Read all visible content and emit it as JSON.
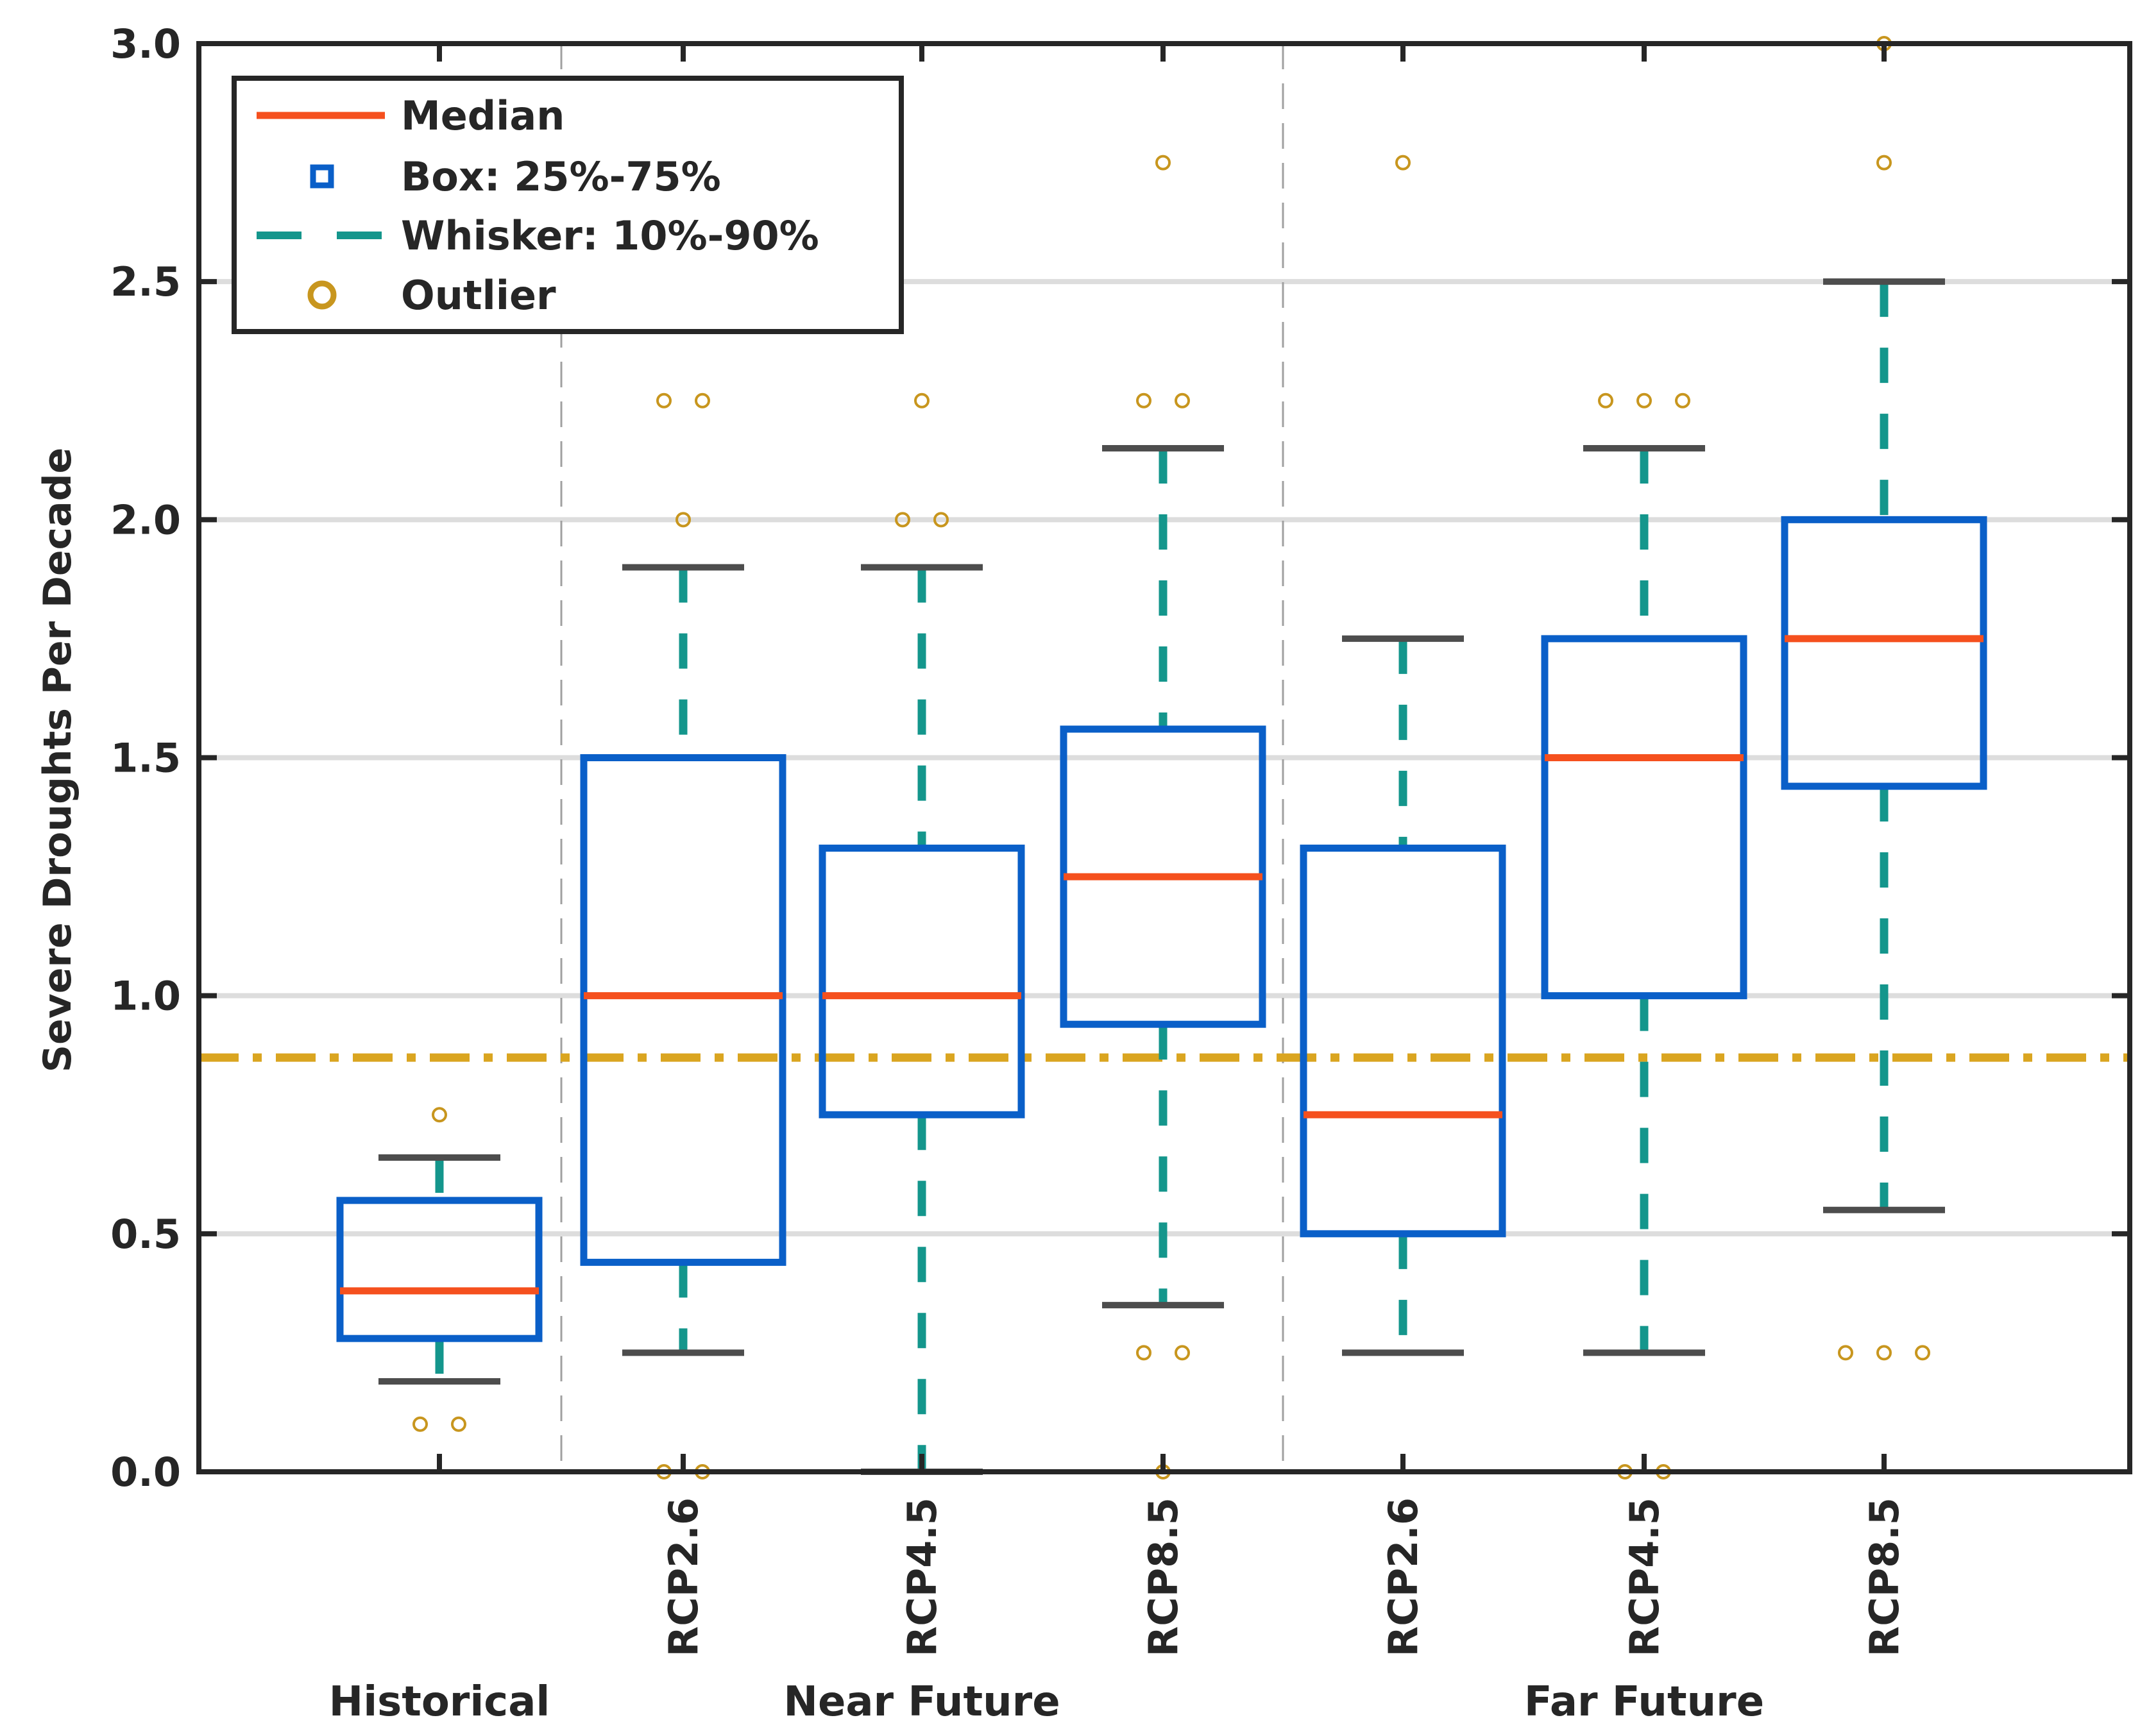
{
  "chart_data": {
    "type": "box",
    "title": "",
    "xlabel": "",
    "ylabel": "Severe Droughts Per Decade",
    "ylim": [
      0,
      3
    ],
    "yticks": [
      0,
      0.5,
      1,
      1.5,
      2,
      2.5,
      3
    ],
    "ytick_labels": [
      "0.0",
      "0.5",
      "1.0",
      "1.5",
      "2.0",
      "2.5",
      "3.0"
    ],
    "grid": "horizontal",
    "reference_line": {
      "value": 0.87,
      "style": "dash-dot",
      "color": "#DAA520"
    },
    "group_labels": [
      "Historical",
      "Near Future",
      "Far Future"
    ],
    "legend": {
      "position": "top-left",
      "entries": [
        {
          "label": "Median",
          "kind": "line",
          "color": "#F5501E"
        },
        {
          "label": "Box:  25%-75%",
          "kind": "square",
          "color": "#0A5FC8"
        },
        {
          "label": "Whisker:  10%-90%",
          "kind": "dash",
          "color": "#14968C"
        },
        {
          "label": "Outlier",
          "kind": "circle",
          "color": "#C8961E"
        }
      ]
    },
    "colors": {
      "median": "#F5501E",
      "box": "#0A5FC8",
      "whisker": "#14968C",
      "cap": "#4D4D4D",
      "outlier": "#C8961E",
      "grid": "#DDDDDD",
      "axis": "#262626",
      "separator": "#A0A0A0"
    },
    "boxes": [
      {
        "group": "Historical",
        "label": "",
        "q1": 0.28,
        "median": 0.38,
        "q3": 0.57,
        "whisker_low": 0.19,
        "whisker_high": 0.66,
        "outliers": [
          [
            0.1,
            0.1
          ],
          [
            0.75
          ]
        ]
      },
      {
        "group": "Near Future",
        "label": "RCP2.6",
        "q1": 0.44,
        "median": 1.0,
        "q3": 1.5,
        "whisker_low": 0.25,
        "whisker_high": 1.9,
        "outliers": [
          [
            0.0,
            0.0
          ],
          [
            2.0
          ],
          [
            2.25,
            2.25
          ]
        ]
      },
      {
        "group": "Near Future",
        "label": "RCP4.5",
        "q1": 0.75,
        "median": 1.0,
        "q3": 1.31,
        "whisker_low": 0.0,
        "whisker_high": 1.9,
        "outliers": [
          [
            2.0,
            2.0
          ],
          [
            2.25
          ]
        ]
      },
      {
        "group": "Near Future",
        "label": "RCP8.5",
        "q1": 0.94,
        "median": 1.25,
        "q3": 1.56,
        "whisker_low": 0.35,
        "whisker_high": 2.15,
        "outliers": [
          [
            0.0
          ],
          [
            0.25,
            0.25
          ],
          [
            2.25,
            2.25
          ],
          [
            2.75
          ]
        ]
      },
      {
        "group": "Far Future",
        "label": "RCP2.6",
        "q1": 0.5,
        "median": 0.75,
        "q3": 1.31,
        "whisker_low": 0.25,
        "whisker_high": 1.75,
        "outliers": [
          [
            2.75
          ]
        ]
      },
      {
        "group": "Far Future",
        "label": "RCP4.5",
        "q1": 1.0,
        "median": 1.5,
        "q3": 1.75,
        "whisker_low": 0.25,
        "whisker_high": 2.15,
        "outliers": [
          [
            0.0,
            0.0
          ],
          [
            2.25,
            2.25,
            2.25
          ]
        ]
      },
      {
        "group": "Far Future",
        "label": "RCP8.5",
        "q1": 1.44,
        "median": 1.75,
        "q3": 2.0,
        "whisker_low": 0.55,
        "whisker_high": 2.5,
        "outliers": [
          [
            0.25,
            0.25,
            0.25
          ],
          [
            2.75
          ],
          [
            3.0
          ]
        ]
      }
    ]
  }
}
